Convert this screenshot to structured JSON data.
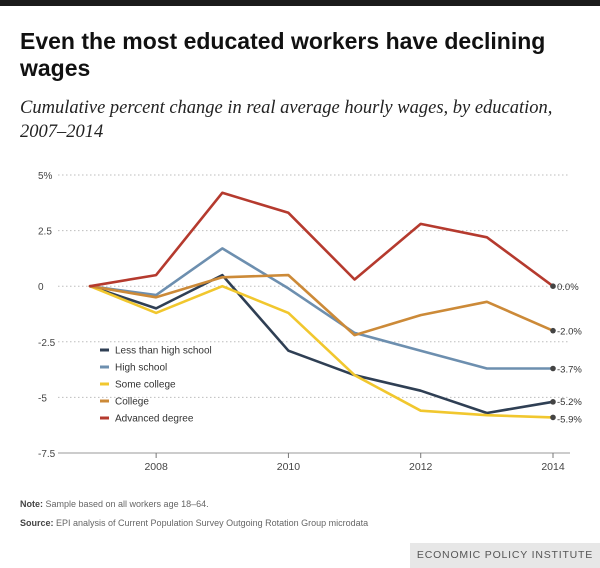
{
  "title": "Even the most educated workers have declining wages",
  "subtitle": "Cumulative percent change in real average hourly wages, by education, 2007–2014",
  "note_label": "Note:",
  "note_text": " Sample based on all workers age 18–64.",
  "source_label": "Source:",
  "source_text": " EPI analysis of Current Population Survey Outgoing Rotation Group microdata",
  "footer": "ECONOMIC POLICY INSTITUTE",
  "chart_data": {
    "type": "line",
    "title": "Even the most educated workers have declining wages",
    "subtitle": "Cumulative percent change in real average hourly wages, by education, 2007–2014",
    "xlabel": "",
    "ylabel": "",
    "x": [
      2007,
      2008,
      2009,
      2010,
      2011,
      2012,
      2013,
      2014
    ],
    "xlim": [
      2007,
      2014
    ],
    "xticks": [
      2008,
      2010,
      2012,
      2014
    ],
    "ylim": [
      -7.5,
      5
    ],
    "yticks": [
      5,
      2.5,
      0,
      -2.5,
      -5,
      -7.5
    ],
    "ytick_labels": [
      "5%",
      "2.5",
      "0",
      "-2.5",
      "-5",
      "-7.5"
    ],
    "grid": true,
    "legend_position": "bottom-left",
    "series": [
      {
        "name": "Less than high school",
        "color": "#2f3f54",
        "values": [
          0,
          -1.0,
          0.5,
          -2.9,
          -4.0,
          -4.7,
          -5.7,
          -5.2
        ],
        "end_label": "-5.2%"
      },
      {
        "name": "High school",
        "color": "#6d8faf",
        "values": [
          0,
          -0.4,
          1.7,
          -0.1,
          -2.1,
          -2.9,
          -3.7,
          -3.7
        ],
        "end_label": "-3.7%"
      },
      {
        "name": "Some college",
        "color": "#f1c72e",
        "values": [
          0,
          -1.2,
          0.0,
          -1.2,
          -4.0,
          -5.6,
          -5.8,
          -5.9
        ],
        "end_label": "-5.9%"
      },
      {
        "name": "College",
        "color": "#cc8a38",
        "values": [
          0,
          -0.5,
          0.4,
          0.5,
          -2.2,
          -1.3,
          -0.7,
          -2.0
        ],
        "end_label": "-2.0%"
      },
      {
        "name": "Advanced degree",
        "color": "#b53a2e",
        "values": [
          0,
          0.5,
          4.2,
          3.3,
          0.3,
          2.8,
          2.2,
          0.0
        ],
        "end_label": "0.0%"
      }
    ]
  }
}
